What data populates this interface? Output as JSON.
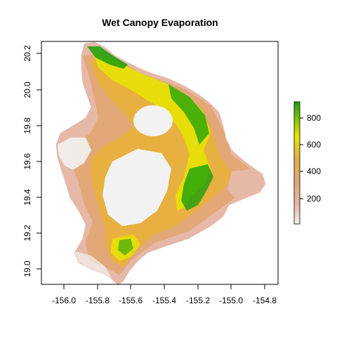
{
  "title": "Wet Canopy Evaporation",
  "x_ticks": [
    "-156.0",
    "-155.8",
    "-155.6",
    "-155.4",
    "-155.2",
    "-155.0",
    "-154.8"
  ],
  "y_ticks": [
    "19.0",
    "19.2",
    "19.4",
    "19.6",
    "19.8",
    "20.0",
    "20.2"
  ],
  "legend_ticks": [
    "200",
    "400",
    "600",
    "800"
  ],
  "colors": {
    "low": "#f2f2f2",
    "pink": "#e6b8a8",
    "tan": "#e2a878",
    "orange": "#e8b040",
    "yellow": "#e6e600",
    "green": "#1aa00a"
  },
  "chart_data": {
    "type": "heatmap",
    "title": "Wet Canopy Evaporation",
    "xlim": [
      -156.1,
      -154.7
    ],
    "ylim": [
      18.91,
      20.26
    ],
    "x_ticks": [
      -156.0,
      -155.8,
      -155.6,
      -155.4,
      -155.2,
      -155.0,
      -154.8
    ],
    "y_ticks": [
      19.0,
      19.2,
      19.4,
      19.6,
      19.8,
      20.0,
      20.2
    ],
    "legend": {
      "position": "right",
      "range": [
        0,
        900
      ],
      "ticks": [
        200,
        400,
        600,
        800
      ],
      "colormap": [
        "#f2f2f2",
        "#e6b8a8",
        "#e2a878",
        "#e8b040",
        "#e6e600",
        "#1aa00a"
      ]
    }
  }
}
